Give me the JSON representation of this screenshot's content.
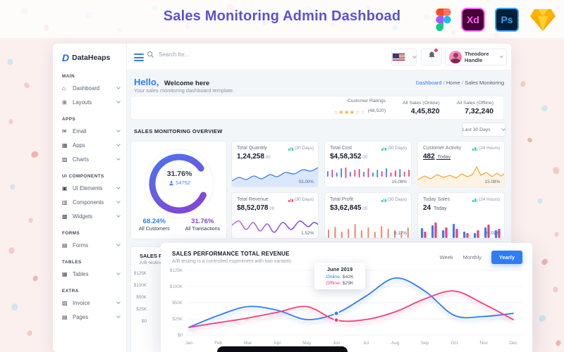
{
  "page": {
    "title": "Sales Monitoring Admin Dashboad"
  },
  "tools": {
    "xd_label": "Xd",
    "ps_label": "Ps"
  },
  "sidebar": {
    "logo_letter": "D",
    "logo_text": "DataHeaps",
    "sections": [
      {
        "label": "MAIN",
        "items": [
          {
            "icon": "⌂",
            "name": "dashboard",
            "label": "Dashboard"
          },
          {
            "icon": "⊞",
            "name": "layouts",
            "label": "Layouts"
          }
        ]
      },
      {
        "label": "APPS",
        "items": [
          {
            "icon": "✉",
            "name": "email",
            "label": "Email"
          },
          {
            "icon": "▦",
            "name": "apps",
            "label": "Apps"
          },
          {
            "icon": "▨",
            "name": "charts",
            "label": "Charts"
          }
        ]
      },
      {
        "label": "UI COMPONENTS",
        "items": [
          {
            "icon": "▣",
            "name": "ui-elements",
            "label": "UI Elements"
          },
          {
            "icon": "▥",
            "name": "components",
            "label": "Components"
          },
          {
            "icon": "▩",
            "name": "widgets",
            "label": "Widgets"
          }
        ]
      },
      {
        "label": "FORMS",
        "items": [
          {
            "icon": "▤",
            "name": "forms",
            "label": "Forms"
          }
        ]
      },
      {
        "label": "TABLES",
        "items": [
          {
            "icon": "▦",
            "name": "tables",
            "label": "Tables"
          }
        ]
      },
      {
        "label": "EXTRA",
        "items": [
          {
            "icon": "▧",
            "name": "invoice",
            "label": "Invoice"
          },
          {
            "icon": "▤",
            "name": "pages",
            "label": "Pages"
          }
        ]
      }
    ]
  },
  "topbar": {
    "search_placeholder": "Search for...",
    "user_name": "Theodore Handle"
  },
  "welcome": {
    "greeting": "Hello,",
    "headline": "Welcome here",
    "subtitle": "Your sales monitoring dashboard template.",
    "breadcrumb": [
      "Dashboard",
      "Home",
      "Sales Monitoring"
    ]
  },
  "stats": {
    "ratings": {
      "label": "Customer Ratings",
      "stars": [
        "empty",
        "full",
        "full",
        "full",
        "empty",
        "empty"
      ],
      "count": "(48,520)"
    },
    "online": {
      "label": "All Sales (Online)",
      "value": "4,45,820"
    },
    "offline": {
      "label": "All Sales (Offline)",
      "value": "7,32,240"
    }
  },
  "overview": {
    "title": "SALES MONITORING OVERVIEW",
    "filter_value": "Last 30 Days",
    "donut": {
      "center_percent": "31.76%",
      "center_count": "54752",
      "legend": [
        {
          "percent": "68.24%",
          "label": "All Customers",
          "color": "#2f7cf6"
        },
        {
          "percent": "31.76%",
          "label": "All Transactions",
          "color": "#7a49d8"
        }
      ]
    },
    "cards": [
      {
        "title": "Total Quantity",
        "value": "1,24,258",
        "decimals": ".00",
        "period": "(30 Days)",
        "period_color": "#35c8b4",
        "change": "03.00%",
        "spark": "area-blue"
      },
      {
        "title": "Total Cost",
        "value": "$4,58,352",
        "decimals": ".00",
        "period": "(30 Days)",
        "period_color": "#35c8b4",
        "change": "15.08%",
        "spark": "candles"
      },
      {
        "title": "Customer Activity",
        "value": "482",
        "value_suffix": "Today",
        "period": "(24 Hours)",
        "period_color": "#35c8b4",
        "change": "15.08%",
        "spark": "line-orange"
      },
      {
        "title": "Total Revenue",
        "value": "$8,52,078",
        "decimals": ".00",
        "period": "(30 Days)",
        "period_color": "#ef4b6c",
        "change": "1.52%",
        "spark": "line-purple"
      },
      {
        "title": "Total Profit",
        "value": "$3,62,845",
        "decimals": ".00",
        "period": "(30 Days)",
        "period_color": "#35c8b4",
        "change": "6.17%",
        "spark": "bars-coral"
      },
      {
        "title": "Today Sales",
        "value": "24",
        "value_suffix": "Today",
        "period": "(24 Hours)",
        "period_color": "#35c8b4",
        "change": "05.01%",
        "spark": "bars-duo"
      }
    ]
  },
  "performance": {
    "title": "SALES PERFORMANCE TOTAL REVENUE",
    "subtitle": "A/B testing is a controlled experiment with two variants",
    "tabs": [
      {
        "label": "Week",
        "active": false
      },
      {
        "label": "Monthly",
        "active": false
      },
      {
        "label": "Yearly",
        "active": true
      }
    ],
    "tooltip": {
      "title": "June 2019",
      "rows": [
        {
          "label": "Online:",
          "value": "$42K",
          "color": "#2f7cf6"
        },
        {
          "label": "Offline:",
          "value": "$29K",
          "color": "#f43f78"
        }
      ]
    }
  },
  "chart_data": {
    "type": "line",
    "title": "SALES PERFORMANCE TOTAL REVENUE",
    "x": [
      "Jan",
      "Feb",
      "Mar",
      "Apr",
      "May",
      "Jun",
      "Jul",
      "Aug",
      "Sep",
      "Oct",
      "Nov",
      "Dec"
    ],
    "y_ticks": [
      "$125K",
      "$100K",
      "$50K",
      "$25K",
      "$0"
    ],
    "ylim_k": [
      0,
      125
    ],
    "grid": true,
    "series": [
      {
        "name": "Online",
        "color": "#2f7cf6",
        "values_k": [
          15,
          38,
          55,
          48,
          30,
          42,
          75,
          110,
          85,
          38,
          36,
          42
        ]
      },
      {
        "name": "Offline",
        "color": "#f43f78",
        "values_k": [
          15,
          24,
          33,
          44,
          55,
          29,
          30,
          45,
          70,
          85,
          60,
          30
        ]
      }
    ],
    "highlight": {
      "x": "Jun",
      "online_k": 42,
      "offline_k": 29
    }
  },
  "colors": {
    "accent_title": "#5a52d5",
    "primary_blue": "#2f7cf6",
    "pink": "#f43f78",
    "purple": "#7a49d8",
    "orange": "#f9a83c",
    "teal": "#35c8b4",
    "star_orange": "#f7a823",
    "content_bg": "#f3f6f9"
  }
}
